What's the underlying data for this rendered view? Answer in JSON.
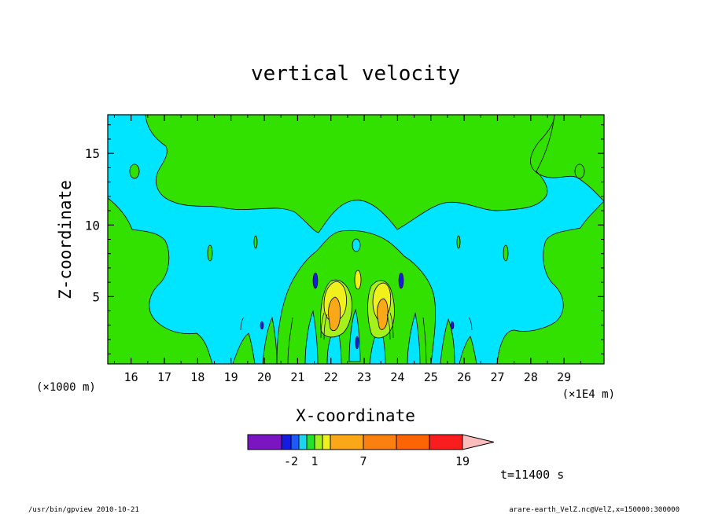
{
  "chart_data": {
    "type": "heatmap",
    "title": "vertical velocity",
    "xlabel": "X-coordinate",
    "ylabel": "Z-coordinate",
    "x_unit_left": "(×1000 m)",
    "x_unit_right": "(×1E4 m)",
    "xlim": [
      15.3,
      30.2
    ],
    "ylim": [
      0.3,
      17.7
    ],
    "x_ticks": [
      16,
      17,
      18,
      19,
      20,
      21,
      22,
      23,
      24,
      25,
      26,
      27,
      28,
      29
    ],
    "x_tick_labels": [
      "16",
      "17",
      "18",
      "19",
      "20",
      "21",
      "22",
      "23",
      "24",
      "25",
      "26",
      "27",
      "28",
      "29"
    ],
    "y_ticks": [
      5,
      10,
      15
    ],
    "y_tick_labels": [
      "5",
      "10",
      "15"
    ],
    "grid": false,
    "colorbar": {
      "colors": [
        "#7b15c1",
        "#151be0",
        "#1c59ff",
        "#1cd6f0",
        "#22e22b",
        "#a2f01c",
        "#f0f01c",
        "#fba818",
        "#fa8010",
        "#fd6404",
        "#fa1d1d",
        "#fc7f7f",
        "#fbbcbc"
      ],
      "labels": [
        "-2",
        "1",
        "7",
        "19"
      ]
    },
    "time_label": "t=11400 s",
    "footer_left": "/usr/bin/gpview  2010-10-21",
    "footer_right": "arare-earth_VelZ.nc@VelZ,x=150000:300000"
  }
}
